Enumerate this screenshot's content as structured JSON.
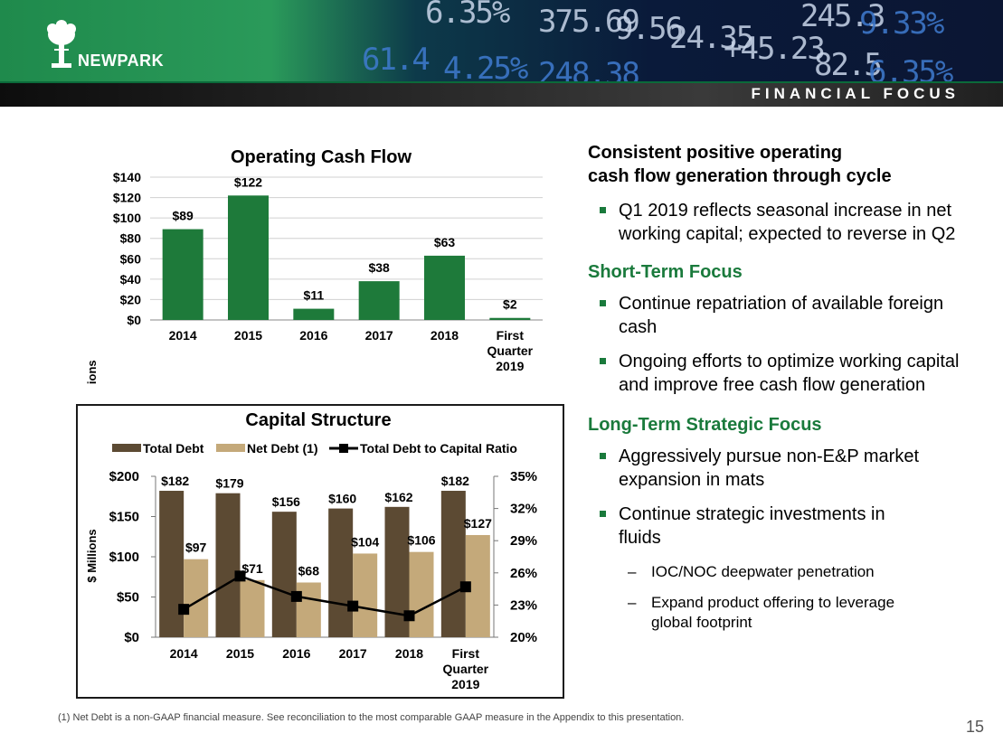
{
  "header": {
    "brand": "NEWPARK",
    "banner": "FINANCIAL FOCUS",
    "tickers": [
      "6.35%",
      "375.69",
      "9.56",
      "24.35",
      "+45.23",
      "245.3",
      "9.33%",
      "61.4",
      "4.25%",
      "248.38",
      "82.5",
      "6.35%"
    ],
    "colors": {
      "brand_green": "#1a7a3c",
      "banner_bg": "#1e1e1e"
    }
  },
  "chart_data": [
    {
      "type": "bar",
      "title": "Operating Cash Flow",
      "ylabel": "$ Millions",
      "categories": [
        "2014",
        "2015",
        "2016",
        "2017",
        "2018",
        "First Quarter 2019"
      ],
      "values": [
        89,
        122,
        11,
        38,
        63,
        2
      ],
      "data_labels": [
        "$89",
        "$122",
        "$11",
        "$38",
        "$63",
        "$2"
      ],
      "ylim": [
        0,
        140
      ],
      "yticks": [
        "$0",
        "$20",
        "$40",
        "$60",
        "$80",
        "$100",
        "$120",
        "$140"
      ],
      "grid": true,
      "bar_color": "#1e7a3a"
    },
    {
      "type": "bar",
      "title": "Capital Structure",
      "ylabel": "$ Millions",
      "categories": [
        "2014",
        "2015",
        "2016",
        "2017",
        "2018",
        "First Quarter 2019"
      ],
      "series": [
        {
          "name": "Total Debt",
          "values": [
            182,
            179,
            156,
            160,
            162,
            182
          ],
          "labels": [
            "$182",
            "$179",
            "$156",
            "$160",
            "$162",
            "$182"
          ],
          "color": "#5c4a33"
        },
        {
          "name": "Net Debt (1)",
          "values": [
            97,
            71,
            68,
            104,
            106,
            127
          ],
          "labels": [
            "$97",
            "$71",
            "$68",
            "$104",
            "$106",
            "$127"
          ],
          "color": "#c4a97a"
        },
        {
          "name": "Total Debt to Capital Ratio",
          "type": "line",
          "axis": "right",
          "values": [
            22.6,
            25.7,
            23.8,
            22.9,
            22.0,
            24.7
          ],
          "color": "#000000"
        }
      ],
      "ylim": [
        0,
        200
      ],
      "yticks": [
        "$0",
        "$50",
        "$100",
        "$150",
        "$200"
      ],
      "y2lim": [
        20,
        35
      ],
      "y2ticks": [
        "20%",
        "23%",
        "26%",
        "29%",
        "32%",
        "35%"
      ],
      "legend": "top",
      "grid": false
    }
  ],
  "right": {
    "heading_line1": "Consistent positive operating",
    "heading_line2": "cash flow generation through cycle",
    "bullet1": "Q1 2019 reflects seasonal increase in net working capital; expected to reverse in Q2",
    "short_term_title": "Short-Term Focus",
    "short_bullets": [
      "Continue repatriation of available foreign cash",
      "Ongoing efforts to optimize working capital and improve free cash flow generation"
    ],
    "long_term_title": "Long-Term Strategic Focus",
    "long_bullets": [
      "Aggressively pursue non-E&P market expansion in mats",
      "Continue strategic investments in fluids"
    ],
    "sub_bullets": [
      "IOC/NOC deepwater penetration",
      "Expand product offering to leverage global footprint"
    ],
    "dash": "–"
  },
  "footnote": "(1) Net Debt is a non-GAAP financial measure.  See reconciliation to the most comparable GAAP measure in the Appendix to this presentation.",
  "page_number": "15"
}
